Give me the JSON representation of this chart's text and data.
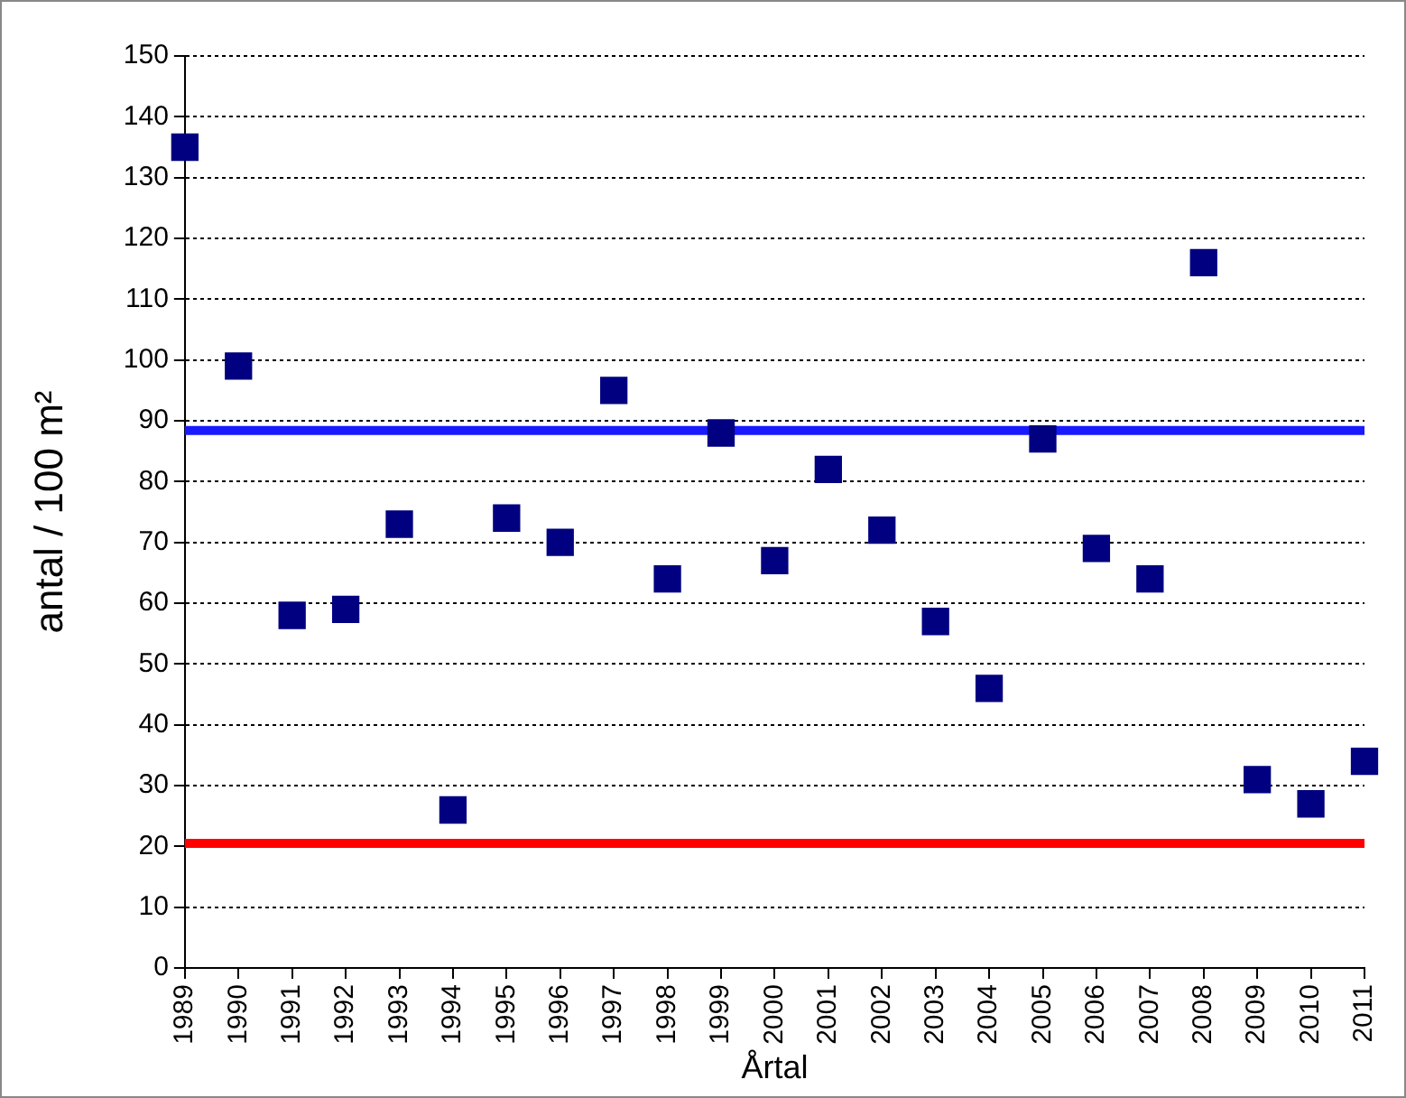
{
  "chart_data": {
    "type": "scatter",
    "xlabel": "Årtal",
    "ylabel": "antal / 100 m²",
    "categories": [
      "1989",
      "1990",
      "1991",
      "1992",
      "1993",
      "1994",
      "1995",
      "1996",
      "1997",
      "1998",
      "1999",
      "2000",
      "2001",
      "2002",
      "2003",
      "2004",
      "2005",
      "2006",
      "2007",
      "2008",
      "2009",
      "2010",
      "2011"
    ],
    "series": [
      {
        "color": "#000080",
        "values": [
          135,
          99,
          58,
          59,
          73,
          26,
          74,
          70,
          95,
          64,
          88,
          67,
          82,
          72,
          57,
          46,
          87,
          69,
          64,
          116,
          31,
          27,
          34
        ]
      }
    ],
    "ylim": [
      0,
      150
    ],
    "yticks": [
      0,
      10,
      20,
      30,
      40,
      50,
      60,
      70,
      80,
      90,
      100,
      110,
      120,
      130,
      140,
      150
    ],
    "grid": "y",
    "legend": false,
    "marker": "square",
    "ref_lines": [
      {
        "axis": "y",
        "value": 88.4,
        "color": "#1a1aff"
      },
      {
        "axis": "y",
        "value": 20.5,
        "color": "#ff0000"
      }
    ]
  }
}
